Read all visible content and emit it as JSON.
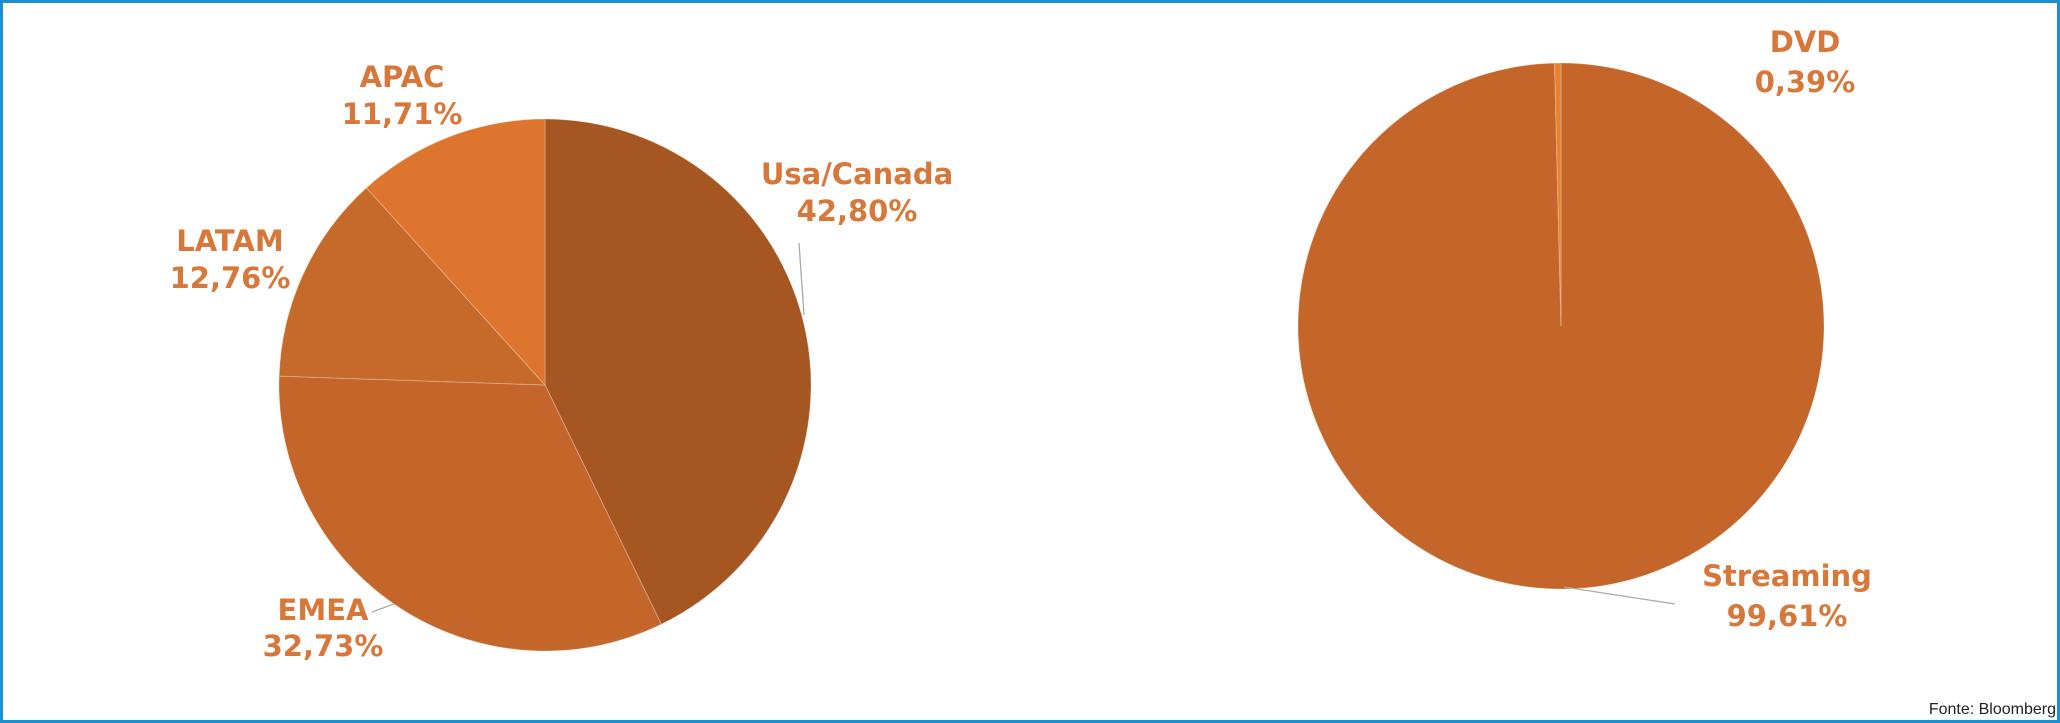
{
  "chart_data": [
    {
      "type": "pie",
      "categories": [
        "Usa/Canada",
        "EMEA",
        "LATAM",
        "APAC"
      ],
      "values": [
        42.8,
        32.73,
        12.76,
        11.71
      ],
      "value_labels": [
        "42,80%",
        "32,73%",
        "12,76%",
        "11,71%"
      ],
      "colors": [
        "#a65721",
        "#c4652a",
        "#c66a2c",
        "#dd752f"
      ]
    },
    {
      "type": "pie",
      "categories": [
        "Streaming",
        "DVD"
      ],
      "values": [
        99.61,
        0.39
      ],
      "value_labels": [
        "99,61%",
        "0,39%"
      ],
      "colors": [
        "#c4652a",
        "#e8822f"
      ]
    }
  ],
  "source": "Fonte: Bloomberg"
}
